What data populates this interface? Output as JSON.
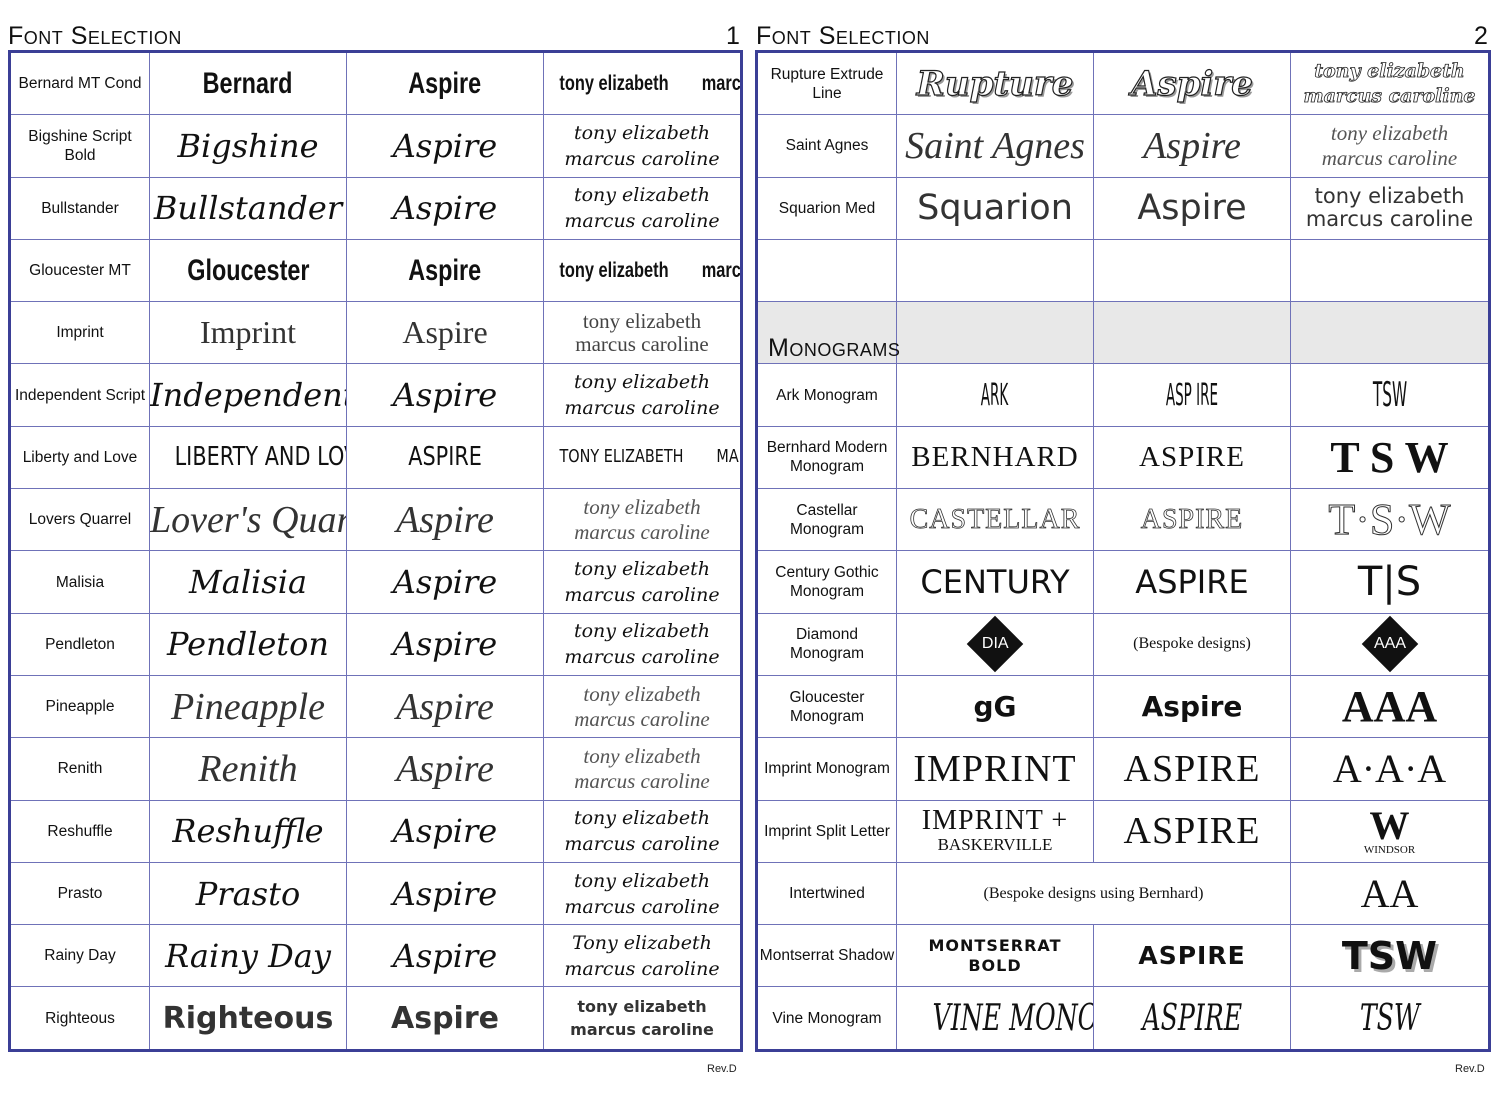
{
  "page1": {
    "title": "Font Selection",
    "page_number": "1",
    "revision": "Rev.D",
    "rows": [
      {
        "label": "Bernard MT Cond",
        "sample": "Bernard",
        "aspire": "Aspire",
        "names": [
          "tony  elizabeth",
          "marcus  caroline"
        ]
      },
      {
        "label": "Bigshine Script Bold",
        "sample": "Bigshine",
        "aspire": "Aspire",
        "names": [
          "tony  elizabeth",
          "marcus caroline"
        ]
      },
      {
        "label": "Bullstander",
        "sample": "Bullstander",
        "aspire": "Aspire",
        "names": [
          "tony  elizabeth",
          "marcus  caroline"
        ]
      },
      {
        "label": "Gloucester MT",
        "sample": "Gloucester",
        "aspire": "Aspire",
        "names": [
          "tony  elizabeth",
          "marcus  caroline"
        ]
      },
      {
        "label": "Imprint",
        "sample": "Imprint",
        "aspire": "Aspire",
        "names": [
          "tony  elizabeth",
          "marcus  caroline"
        ]
      },
      {
        "label": "Independent Script",
        "sample": "Independent",
        "aspire": "Aspire",
        "names": [
          "tony  elizabeth",
          "marcus  caroline"
        ]
      },
      {
        "label": "Liberty and Love",
        "sample": "LIBERTY AND LOVE",
        "aspire": "ASPIRE",
        "names": [
          "TONY  ELIZABETH",
          "MARCUS  CAROLINE"
        ]
      },
      {
        "label": "Lovers Quarrel",
        "sample": "Lover's Quarrel",
        "aspire": "Aspire",
        "names": [
          "tony  elizabeth",
          "marcus  caroline"
        ]
      },
      {
        "label": "Malisia",
        "sample": "Malisia",
        "aspire": "Aspire",
        "names": [
          "tony elizabeth",
          "marcus caroline"
        ]
      },
      {
        "label": "Pendleton",
        "sample": "Pendleton",
        "aspire": "Aspire",
        "names": [
          "tony elizabeth",
          "marcus caroline"
        ]
      },
      {
        "label": "Pineapple",
        "sample": "Pineapple",
        "aspire": "Aspire",
        "names": [
          "tony elizabeth",
          "marcus caroline"
        ]
      },
      {
        "label": "Renith",
        "sample": "Renith",
        "aspire": "Aspire",
        "names": [
          "tony  elizabeth",
          "marcus  caroline"
        ]
      },
      {
        "label": "Reshuffle",
        "sample": "Reshuffle",
        "aspire": "Aspire",
        "names": [
          "tony elizabeth",
          "marcus caroline"
        ]
      },
      {
        "label": "Prasto",
        "sample": "Prasto",
        "aspire": "Aspire",
        "names": [
          "tony  elizabeth",
          "marcus  caroline"
        ]
      },
      {
        "label": "Rainy Day",
        "sample": "Rainy Day",
        "aspire": "Aspire",
        "names": [
          "Tony  elizabeth",
          "marcus  caroline"
        ]
      },
      {
        "label": "Righteous",
        "sample": "Righteous",
        "aspire": "Aspire",
        "names": [
          "tony elizabeth",
          "marcus caroline"
        ]
      }
    ]
  },
  "page2": {
    "title": "Font Selection",
    "page_number": "2",
    "revision": "Rev.D",
    "rows": [
      {
        "label": "Rupture Extrude Line",
        "sample": "Rupture",
        "aspire": "Aspire",
        "names": [
          "tony  elizabeth",
          "marcus  caroline"
        ]
      },
      {
        "label": "Saint Agnes",
        "sample": "Saint Agnes",
        "aspire": "Aspire",
        "names": [
          "tony elizabeth",
          "marcus caroline"
        ]
      },
      {
        "label": "Squarion Med",
        "sample": "Squarion",
        "aspire": "Aspire",
        "names": [
          "tony elizabeth",
          "marcus caroline"
        ]
      }
    ],
    "monograms_heading": "Monograms",
    "monograms": [
      {
        "label": "Ark Monogram",
        "sample": "ARK",
        "aspire": "ASP IRE",
        "names": [
          "TSW"
        ]
      },
      {
        "label": "Bernhard Modern Monogram",
        "sample": "BERNHARD",
        "aspire": "ASPIRE",
        "names": [
          "T S W"
        ]
      },
      {
        "label": "Castellar Monogram",
        "sample": "CASTELLAR",
        "aspire": "ASPIRE",
        "names": [
          "T·S·W"
        ]
      },
      {
        "label": "Century Gothic Monogram",
        "sample": "CENTURY",
        "aspire": "ASPIRE",
        "names": [
          "T|S"
        ]
      },
      {
        "label": "Diamond Monogram",
        "sample": "DIA",
        "aspire": "(Bespoke designs)",
        "names": [
          "AAA"
        ]
      },
      {
        "label": "Gloucester Monogram",
        "sample": "gG",
        "aspire": "Aspire",
        "names": [
          "AAA"
        ]
      },
      {
        "label": "Imprint Monogram",
        "sample": "IMPRINT",
        "aspire": "ASPIRE",
        "names": [
          "A·A·A"
        ]
      },
      {
        "label": "Imprint Split Letter",
        "sample": "IMPRINT +",
        "sample_sub": "BASKERVILLE",
        "aspire": "ASPIRE",
        "names": [
          "W"
        ],
        "names_sub": "WINDSOR"
      },
      {
        "label": "Intertwined",
        "sample": "(Bespoke designs using Bernhard)",
        "names": [
          "AA"
        ]
      },
      {
        "label": "Montserrat Shadow",
        "sample": "MONTSERRAT BOLD",
        "aspire": "ASPIRE",
        "names": [
          "TSW"
        ]
      },
      {
        "label": "Vine Monogram",
        "sample": "VINE MONO",
        "aspire": "ASPIRE",
        "names": [
          "TSW"
        ]
      }
    ]
  },
  "colors": {
    "table_border": "#3b3f96",
    "grid": "#6f72b8",
    "section_fill": "#e8e8e8"
  }
}
